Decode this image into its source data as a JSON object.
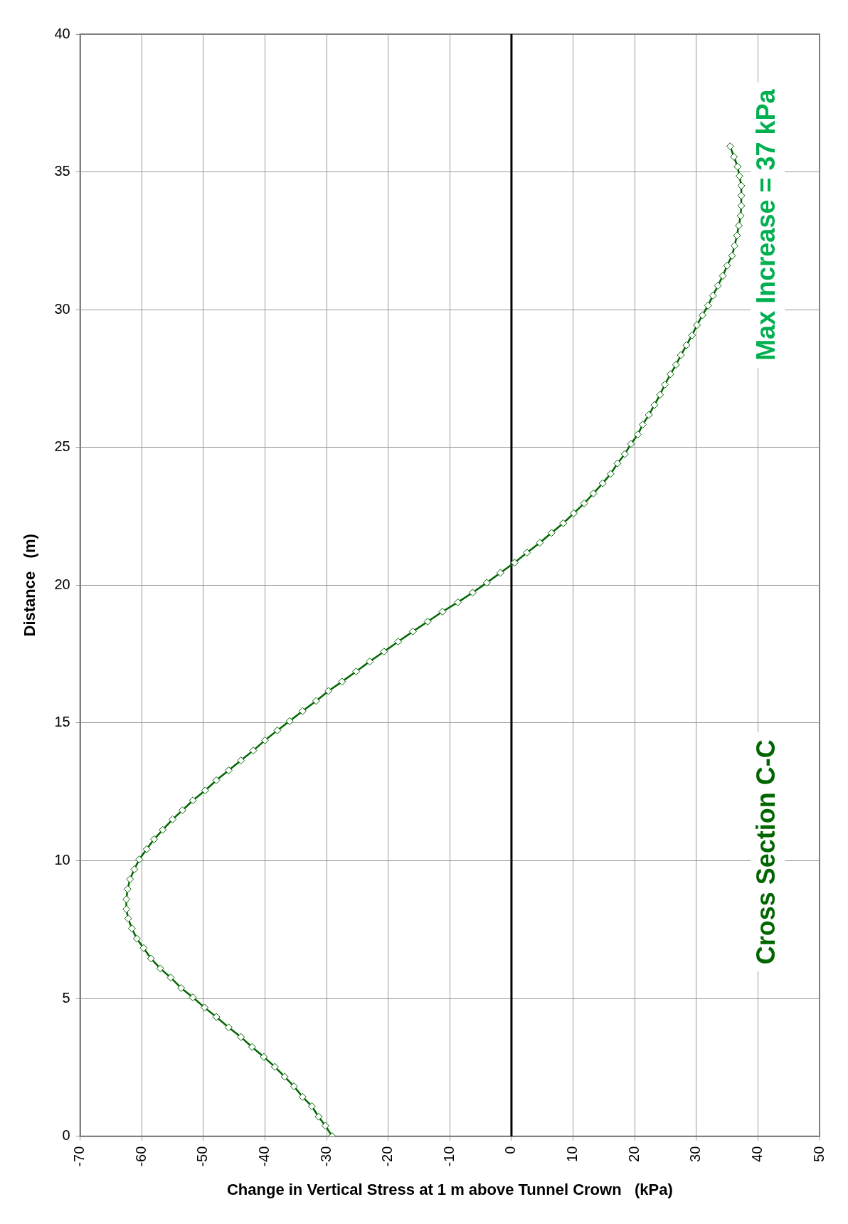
{
  "chart_data": {
    "type": "line",
    "orientation": "horizontal",
    "xlabel": "Change in Vertical Stress at 1 m above Tunnel Crown   (kPa)",
    "ylabel": "Distance   (m)",
    "x": [
      0,
      0.38,
      0.71,
      1.09,
      1.43,
      1.81,
      2.16,
      2.52,
      2.88,
      3.24,
      3.6,
      3.95,
      4.33,
      4.67,
      5.04,
      5.38,
      5.76,
      6.09,
      6.45,
      6.83,
      7.17,
      7.54,
      7.9,
      8.24,
      8.6,
      8.97,
      9.33,
      9.69,
      10.05,
      10.42,
      10.78,
      11.12,
      11.5,
      11.83,
      12.19,
      12.55,
      12.92,
      13.28,
      13.64,
      14.0,
      14.37,
      14.73,
      15.07,
      15.43,
      15.8,
      16.16,
      16.5,
      16.87,
      17.23,
      17.59,
      17.95,
      18.32,
      18.68,
      19.04,
      19.38,
      19.73,
      20.09,
      20.45,
      20.82,
      21.18,
      21.54,
      21.9,
      22.25,
      22.61,
      22.97,
      23.33,
      23.7,
      24.04,
      24.42,
      24.76,
      25.13,
      25.47,
      25.83,
      26.18,
      26.54,
      26.91,
      27.28,
      27.66,
      28.0,
      28.35,
      28.71,
      29.07,
      29.44,
      29.8,
      30.15,
      30.51,
      30.87,
      31.23,
      31.6,
      31.96,
      32.32,
      32.69,
      33.05,
      33.41,
      33.77,
      34.14,
      34.5,
      34.85,
      35.19,
      35.55,
      35.93
    ],
    "series": [
      {
        "color": "#006600",
        "values": [
          -29.1,
          -30.2,
          -31.3,
          -32.4,
          -33.9,
          -35.3,
          -36.8,
          -38.4,
          -40.2,
          -42.1,
          -43.9,
          -45.9,
          -47.9,
          -49.8,
          -51.7,
          -53.6,
          -55.3,
          -57,
          -58.5,
          -59.7,
          -60.8,
          -61.6,
          -62.2,
          -62.5,
          -62.5,
          -62.3,
          -61.9,
          -61.2,
          -60.4,
          -59.2,
          -58,
          -56.6,
          -55,
          -53.4,
          -51.7,
          -49.7,
          -47.9,
          -45.9,
          -43.9,
          -41.9,
          -40,
          -38,
          -36,
          -33.9,
          -31.7,
          -29.7,
          -27.5,
          -25.2,
          -23,
          -20.7,
          -18.4,
          -16,
          -13.6,
          -11.2,
          -8.7,
          -6.3,
          -4,
          -1.8,
          0.5,
          2.5,
          4.6,
          6.5,
          8.4,
          10.1,
          11.8,
          13.3,
          14.8,
          16.1,
          17.2,
          18.4,
          19.4,
          20.5,
          21.3,
          22.3,
          23.2,
          24.1,
          24.9,
          25.8,
          26.7,
          27.5,
          28.4,
          29.3,
          30.1,
          31,
          31.9,
          32.7,
          33.5,
          34.3,
          35,
          35.8,
          36.2,
          36.6,
          36.9,
          37.2,
          37.3,
          37.3,
          37.3,
          37,
          36.7,
          36.1,
          35.5
        ]
      }
    ],
    "xlim": [
      -70,
      50
    ],
    "xticks": [
      -70,
      -60,
      -50,
      -40,
      -30,
      -20,
      -10,
      0,
      10,
      20,
      30,
      40,
      50
    ],
    "ylim": [
      0,
      40
    ],
    "yticks": [
      0,
      5,
      10,
      15,
      20,
      25,
      30,
      35,
      40
    ],
    "grid": true,
    "legend": false,
    "marker": "diamond",
    "ref_lines": [
      {
        "axis": "x",
        "value": 0,
        "color": "#000000"
      }
    ],
    "annotations": [
      "Max Increase = 37 kPa",
      "Cross Section C-C"
    ]
  }
}
